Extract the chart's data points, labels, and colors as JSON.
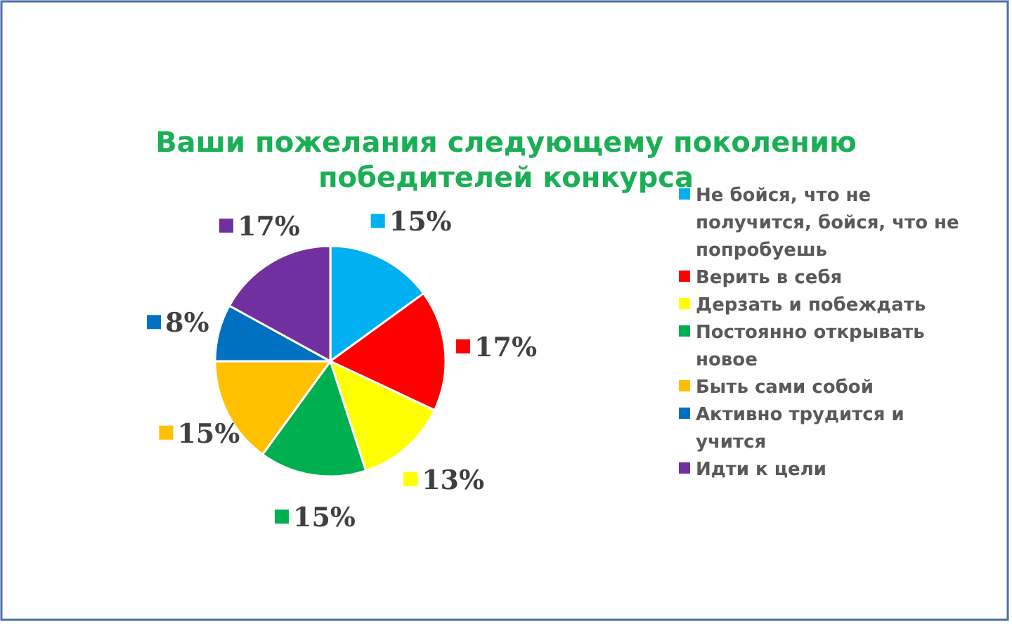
{
  "chart_data": {
    "type": "pie",
    "title": "Ваши пожелания следующему поколению победителей конкурса",
    "categories": [
      "Не бойся, что не получится, бойся, что не попробуешь",
      "Верить в себя",
      "Дерзать и побеждать",
      "Постоянно открывать новое",
      "Быть сами собой",
      "Активно трудится и учится",
      "Идти к цели"
    ],
    "values": [
      15,
      17,
      13,
      15,
      15,
      8,
      17
    ],
    "value_labels": [
      "15%",
      "17%",
      "13%",
      "15%",
      "15%",
      "8%",
      "17%"
    ],
    "colors": [
      "#00b0f0",
      "#ff0000",
      "#ffff00",
      "#00b050",
      "#ffc000",
      "#0070c0",
      "#7030a0"
    ],
    "legend": "right"
  }
}
